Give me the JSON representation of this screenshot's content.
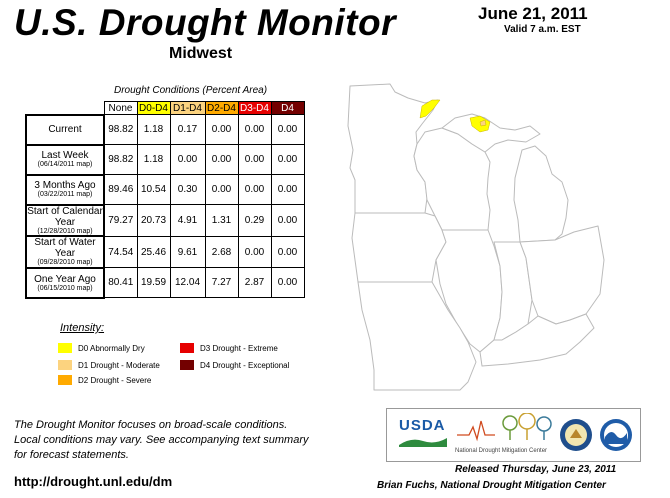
{
  "header": {
    "title": "U.S. Drought Monitor",
    "region": "Midwest",
    "date": "June 21, 2011",
    "valid": "Valid 7 a.m. EST"
  },
  "table": {
    "caption": "Drought Conditions (Percent Area)",
    "columns": [
      "None",
      "D0-D4",
      "D1-D4",
      "D2-D4",
      "D3-D4",
      "D4"
    ],
    "rows": [
      {
        "label": "Current",
        "sub": "",
        "values": [
          "98.82",
          "1.18",
          "0.17",
          "0.00",
          "0.00",
          "0.00"
        ]
      },
      {
        "label": "Last Week",
        "sub": "(06/14/2011 map)",
        "values": [
          "98.82",
          "1.18",
          "0.00",
          "0.00",
          "0.00",
          "0.00"
        ]
      },
      {
        "label": "3 Months Ago",
        "sub": "(03/22/2011 map)",
        "values": [
          "89.46",
          "10.54",
          "0.30",
          "0.00",
          "0.00",
          "0.00"
        ]
      },
      {
        "label": "Start of Calendar Year",
        "sub": "(12/28/2010 map)",
        "values": [
          "79.27",
          "20.73",
          "4.91",
          "1.31",
          "0.29",
          "0.00"
        ]
      },
      {
        "label": "Start of Water Year",
        "sub": "(09/28/2010 map)",
        "values": [
          "74.54",
          "25.46",
          "9.61",
          "2.68",
          "0.00",
          "0.00"
        ]
      },
      {
        "label": "One Year Ago",
        "sub": "(06/15/2010 map)",
        "values": [
          "80.41",
          "19.59",
          "12.04",
          "7.27",
          "2.87",
          "0.00"
        ]
      }
    ]
  },
  "legend": {
    "title": "Intensity:",
    "items": [
      {
        "label": "D0 Abnormally Dry",
        "color": "#ffff00"
      },
      {
        "label": "D1 Drought - Moderate",
        "color": "#fcd37f"
      },
      {
        "label": "D2 Drought - Severe",
        "color": "#ffaa00"
      },
      {
        "label": "D3 Drought - Extreme",
        "color": "#e60000"
      },
      {
        "label": "D4 Drought - Exceptional",
        "color": "#730000"
      }
    ]
  },
  "footer": {
    "note_line1": "The Drought Monitor focuses on broad-scale conditions.",
    "note_line2": "Local conditions may vary. See accompanying text summary",
    "note_line3": "for forecast statements.",
    "url": "http://drought.unl.edu/dm",
    "released": "Released Thursday, June 23, 2011",
    "author": "Brian Fuchs, National Drought Mitigation Center",
    "logos": {
      "usda": "USDA",
      "ndmc": "National Drought Mitigation Center"
    }
  },
  "colors": {
    "d0": "#ffff00",
    "d1": "#fcd37f",
    "d2": "#ffaa00",
    "d3": "#e60000",
    "d4": "#730000",
    "map_fill": "#ffffff",
    "map_stroke": "#bbbbbb"
  }
}
